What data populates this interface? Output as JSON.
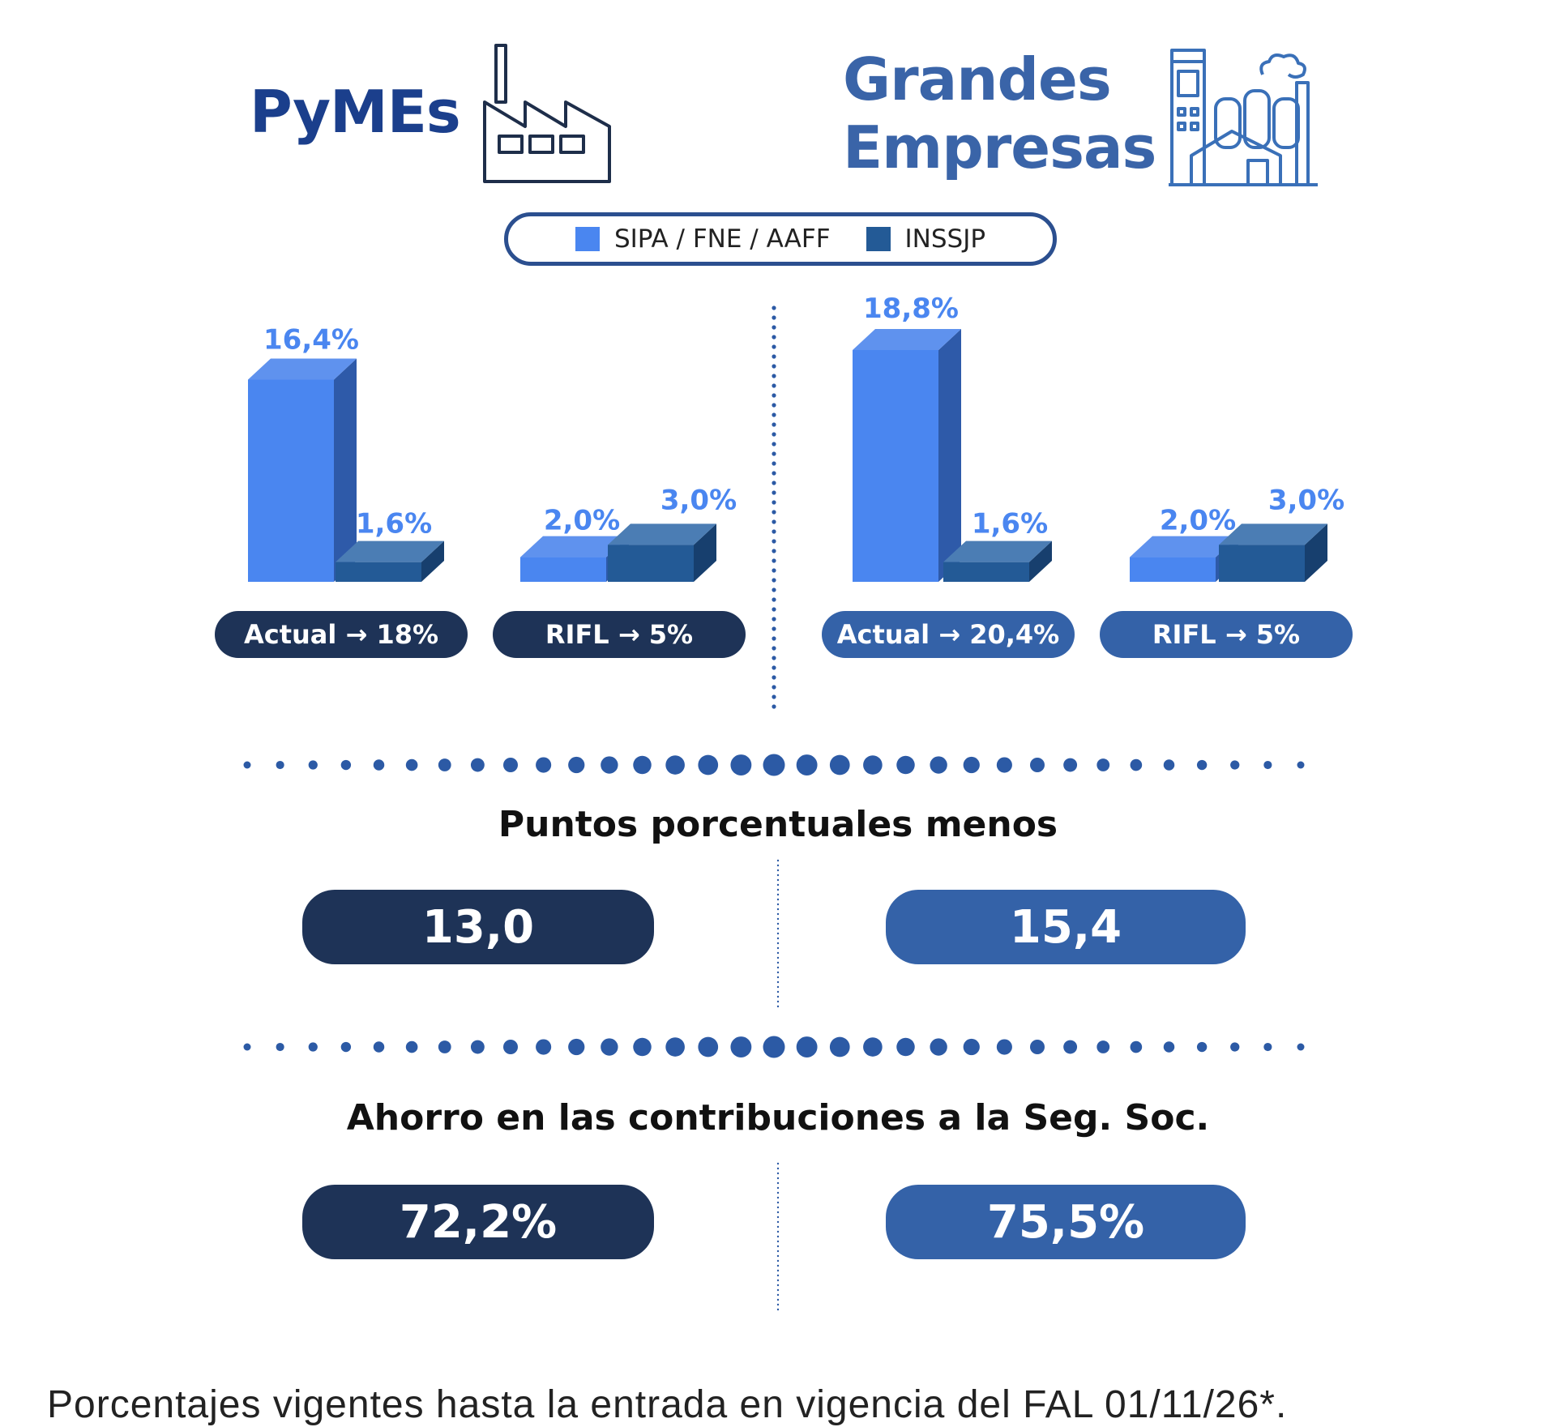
{
  "header": {
    "left_title": "PyMEs",
    "right_title_line1": "Grandes",
    "right_title_line2": "Empresas",
    "left_icon": "factory-icon",
    "right_icon": "industrial-plant-icon"
  },
  "legend": {
    "items": [
      {
        "label": "SIPA / FNE / AAFF",
        "color": "#4a86f0"
      },
      {
        "label": "INSSJP",
        "color": "#235a96"
      }
    ]
  },
  "chart_data": [
    {
      "type": "bar",
      "title": "PyMEs",
      "categories": [
        "Actual → 18%",
        "RIFL → 5%"
      ],
      "series": [
        {
          "name": "SIPA / FNE / AAFF",
          "values": [
            16.4,
            2.0
          ],
          "labels": [
            "16,4%",
            "2,0%"
          ]
        },
        {
          "name": "INSSJP",
          "values": [
            1.6,
            3.0
          ],
          "labels": [
            "1,6%",
            "3,0%"
          ]
        }
      ],
      "ylim": [
        0,
        18.8
      ]
    },
    {
      "type": "bar",
      "title": "Grandes Empresas",
      "categories": [
        "Actual → 20,4%",
        "RIFL → 5%"
      ],
      "series": [
        {
          "name": "SIPA / FNE / AAFF",
          "values": [
            18.8,
            2.0
          ],
          "labels": [
            "18,8%",
            "2,0%"
          ]
        },
        {
          "name": "INSSJP",
          "values": [
            1.6,
            3.0
          ],
          "labels": [
            "1,6%",
            "3,0%"
          ]
        }
      ],
      "ylim": [
        0,
        18.8
      ]
    }
  ],
  "colors": {
    "primary_front": "#4a86f0",
    "primary_side": "#2e5aa9",
    "primary_top": "#5f92ee",
    "secondary_front": "#235a96",
    "secondary_side": "#173f6e",
    "secondary_top": "#4b7db4",
    "pyme_pill": "#1e3357",
    "grandes_pill": "#3462a8",
    "value_label": "#4a86f0",
    "dots": "#2c5aa5"
  },
  "puntos": {
    "heading": "Puntos porcentuales menos",
    "pymes": "13,0",
    "grandes": "15,4"
  },
  "ahorro": {
    "heading": "Ahorro en las contribuciones a la Seg. Soc.",
    "pymes": "72,2%",
    "grandes": "75,5%"
  },
  "footnote": "Porcentajes vigentes hasta la entrada en vigencia del FAL 01/11/26*."
}
